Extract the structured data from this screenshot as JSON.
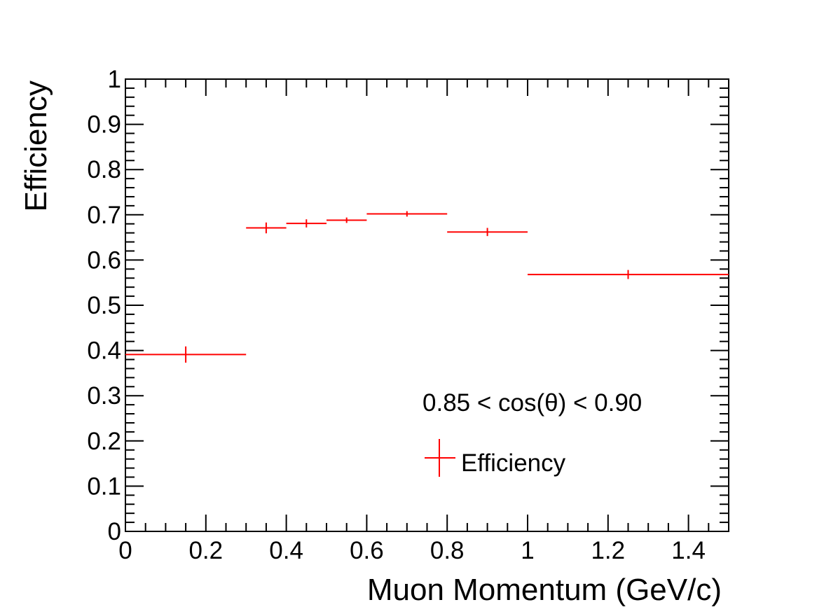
{
  "chart_data": {
    "type": "scatter",
    "title": "",
    "xlabel": "Muon Momentum (GeV/c)",
    "ylabel": "Efficiency",
    "xlim": [
      0,
      1.5
    ],
    "ylim": [
      0,
      1
    ],
    "x_ticks": [
      "0",
      "0.2",
      "0.4",
      "0.6",
      "0.8",
      "1",
      "1.2",
      "1.4"
    ],
    "x_tick_values": [
      0,
      0.2,
      0.4,
      0.6,
      0.8,
      1.0,
      1.2,
      1.4
    ],
    "y_ticks": [
      "0",
      "0.1",
      "0.2",
      "0.3",
      "0.4",
      "0.5",
      "0.6",
      "0.7",
      "0.8",
      "0.9",
      "1"
    ],
    "y_tick_values": [
      0,
      0.1,
      0.2,
      0.3,
      0.4,
      0.5,
      0.6,
      0.7,
      0.8,
      0.9,
      1.0
    ],
    "grid": false,
    "legend_position": "lower-right",
    "annotation": "0.85 < cos(θ) < 0.90",
    "series": [
      {
        "name": "Efficiency",
        "color": "#ff0000",
        "marker": "cross-with-error-bars",
        "points": [
          {
            "x": 0.15,
            "xerr": 0.15,
            "y": 0.391,
            "yerr": 0.018
          },
          {
            "x": 0.35,
            "xerr": 0.05,
            "y": 0.671,
            "yerr": 0.012
          },
          {
            "x": 0.45,
            "xerr": 0.05,
            "y": 0.681,
            "yerr": 0.009
          },
          {
            "x": 0.55,
            "xerr": 0.05,
            "y": 0.688,
            "yerr": 0.006
          },
          {
            "x": 0.7,
            "xerr": 0.1,
            "y": 0.702,
            "yerr": 0.006
          },
          {
            "x": 0.9,
            "xerr": 0.1,
            "y": 0.662,
            "yerr": 0.009
          },
          {
            "x": 1.25,
            "xerr": 0.25,
            "y": 0.568,
            "yerr": 0.01
          }
        ]
      }
    ]
  }
}
